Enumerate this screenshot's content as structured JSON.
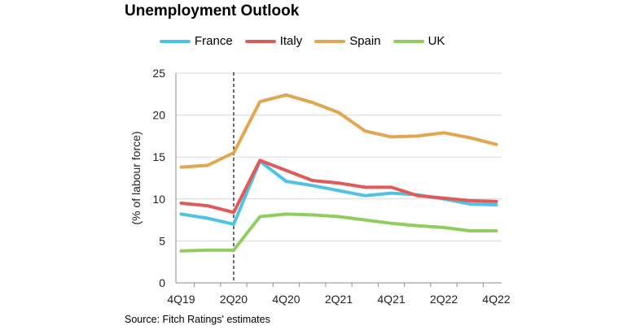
{
  "chart_data": {
    "type": "line",
    "title": "Unemployment Outlook",
    "ylabel": "(% of labour force)",
    "xlabel": "",
    "ylim": [
      0,
      25
    ],
    "yticks": [
      0,
      5,
      10,
      15,
      20,
      25
    ],
    "categories": [
      "4Q19",
      "1Q20",
      "2Q20",
      "3Q20",
      "4Q20",
      "1Q21",
      "2Q21",
      "3Q21",
      "4Q21",
      "1Q22",
      "2Q22",
      "3Q22",
      "4Q22"
    ],
    "tick_labels": [
      "4Q19",
      "2Q20",
      "4Q20",
      "2Q21",
      "4Q21",
      "2Q22",
      "4Q22"
    ],
    "tick_indices": [
      0,
      2,
      4,
      6,
      8,
      10,
      12
    ],
    "marker_index": 2,
    "legend_position": "top",
    "series": [
      {
        "name": "France",
        "color": "#4fc3e6",
        "values": [
          8.2,
          7.7,
          7.0,
          14.5,
          12.1,
          11.6,
          11.0,
          10.4,
          10.7,
          10.5,
          10.0,
          9.4,
          9.3
        ]
      },
      {
        "name": "Italy",
        "color": "#e05a5a",
        "values": [
          9.5,
          9.2,
          8.4,
          14.6,
          13.4,
          12.2,
          11.9,
          11.4,
          11.4,
          10.4,
          10.1,
          9.8,
          9.7
        ]
      },
      {
        "name": "Spain",
        "color": "#e3a650",
        "values": [
          13.8,
          14.0,
          15.5,
          21.6,
          22.4,
          21.5,
          20.3,
          18.1,
          17.4,
          17.5,
          17.9,
          17.3,
          16.5
        ]
      },
      {
        "name": "UK",
        "color": "#8fce5e",
        "values": [
          3.8,
          3.9,
          3.9,
          7.9,
          8.2,
          8.1,
          7.9,
          7.5,
          7.1,
          6.8,
          6.6,
          6.2,
          6.2
        ]
      }
    ]
  },
  "source": "Source: Fitch Ratings' estimates"
}
